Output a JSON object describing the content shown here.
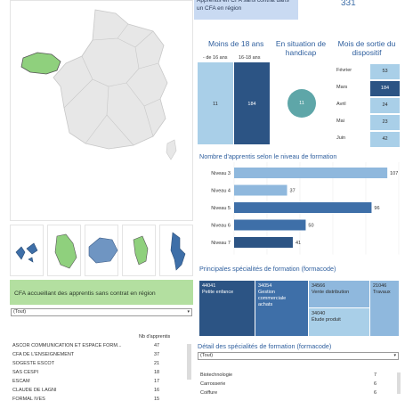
{
  "colors": {
    "dark_blue": "#2c5484",
    "mid_blue": "#3e6fa8",
    "light_blue": "#8fb8dd",
    "pale_blue": "#a9cfe8",
    "teal": "#5ea6a8",
    "green": "#8fd07d",
    "map_grey": "#e7e7e7",
    "banner_green": "#b3dfa0",
    "title_blue": "#2f5f9e"
  },
  "kpi": {
    "label": "Apprentis en CFA sans contrat dans un CFA en région",
    "value": "331"
  },
  "icons": {
    "map": "france-region-map-icon",
    "dom": [
      "guadeloupe-map-icon",
      "martinique-map-icon",
      "reunion-map-icon",
      "guyane-map-icon",
      "mayotte-map-icon"
    ]
  },
  "age": {
    "title": "Moins de 18 ans",
    "categories": [
      "- de 16 ans",
      "16-18 ans"
    ],
    "values": [
      11,
      184
    ]
  },
  "handicap": {
    "title": "En situation de handicap",
    "value": 11
  },
  "exit_month": {
    "title": "Mois de sortie du dispositif",
    "rows": [
      {
        "month": "Février",
        "value": 53
      },
      {
        "month": "Mars",
        "value": 184
      },
      {
        "month": "Avril",
        "value": 24
      },
      {
        "month": "Mai",
        "value": 23
      },
      {
        "month": "Juin",
        "value": 42
      }
    ]
  },
  "chart_data": [
    {
      "type": "bar",
      "orientation": "horizontal",
      "title": "Nombre d'apprentis selon le niveau de formation",
      "categories": [
        "Niveau 3",
        "Niveau 4",
        "Niveau 5",
        "Niveau 6",
        "Niveau 7"
      ],
      "values": [
        107,
        37,
        96,
        50,
        41
      ],
      "xlim": [
        0,
        115
      ],
      "grid": true
    },
    {
      "type": "heatmap",
      "title": "Principales spécialités de formation (formacode)",
      "cells": [
        {
          "code": "44041",
          "label": "Petite enfance",
          "shade": "dark"
        },
        {
          "code": "34054",
          "label": "Gestion commerciale achats",
          "shade": "mid"
        },
        {
          "code": "34566",
          "label": "Vente distribution",
          "shade": "light"
        },
        {
          "code": "21046",
          "label": "Travaux",
          "shade": "light"
        },
        {
          "code": "34040",
          "label": "Étude produit",
          "shade": "pale"
        }
      ]
    }
  ],
  "cfa_panel": {
    "title": "CFA accueillant des apprentis sans contrat en région",
    "filter": "(Tout)",
    "col_header": "Nb d'apprentis",
    "rows": [
      {
        "name": "ASCOR COMMUNICATION ET ESPACE FORM...",
        "value": 47
      },
      {
        "name": "CFA DE L'ENSEIGNEMENT",
        "value": 37
      },
      {
        "name": "SOGESTE ESCOT",
        "value": 21
      },
      {
        "name": "SAS CESPI",
        "value": 18
      },
      {
        "name": "ESCAM",
        "value": 17
      },
      {
        "name": "CLAUDE DE LAGNI",
        "value": 16
      },
      {
        "name": "FORMAL IVES",
        "value": 15
      }
    ]
  },
  "detail_panel": {
    "title": "Détail des spécialités de formation (formacode)",
    "filter": "(Tout)",
    "rows": [
      {
        "name": "Biotechnologie",
        "value": 7
      },
      {
        "name": "Carrosserie",
        "value": 6
      },
      {
        "name": "Coiffure",
        "value": 6
      }
    ]
  }
}
